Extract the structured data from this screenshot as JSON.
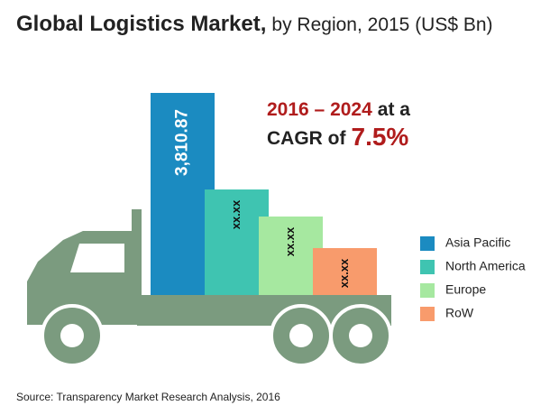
{
  "chart_data": {
    "type": "bar",
    "title": "Global Logistics Market,",
    "subtitle": "by Region, 2015 (US$ Bn)",
    "annotation": {
      "period": "2016 – 2024",
      "at": "at a",
      "cagr": "CAGR of",
      "rate": "7.5%"
    },
    "categories": [
      "Asia Pacific",
      "North America",
      "Europe",
      "RoW"
    ],
    "values": [
      3810.87,
      1990,
      1480,
      885
    ],
    "value_labels": [
      "3,810.87",
      "xx.xx",
      "xx.xx",
      "xx.xx"
    ],
    "colors": [
      "#1b8bc1",
      "#3fc4b1",
      "#a6e8a0",
      "#f89b6c"
    ],
    "source": "Source: Transparency Market Research Analysis, 2016"
  }
}
